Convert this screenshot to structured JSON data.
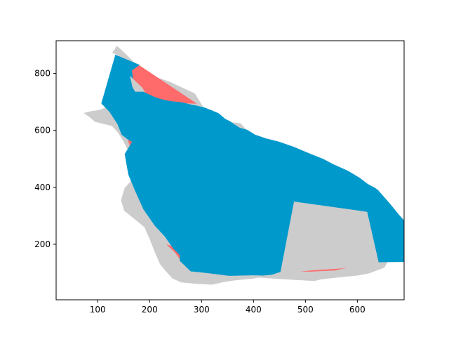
{
  "chart_data": {
    "type": "area",
    "title": "",
    "xlabel": "",
    "ylabel": "",
    "xlim": [
      20,
      690
    ],
    "ylim": [
      5,
      915
    ],
    "x_ticks": [
      100,
      200,
      300,
      400,
      500,
      600
    ],
    "y_ticks": [
      200,
      400,
      600,
      800
    ],
    "x_tick_labels": [
      "100",
      "200",
      "300",
      "400",
      "500",
      "600"
    ],
    "y_tick_labels": [
      "200",
      "400",
      "600",
      "800"
    ],
    "grid": false,
    "colors": {
      "land": "#cccccc",
      "difference": "#ff6b6b",
      "hull": "#0099cc"
    },
    "series": [
      {
        "color": "#cccccc",
        "polygon": [
          [
            137,
            897
          ],
          [
            152,
            872
          ],
          [
            172,
            836
          ],
          [
            193,
            807
          ],
          [
            216,
            785
          ],
          [
            240,
            770
          ],
          [
            263,
            750
          ],
          [
            287,
            730
          ],
          [
            303,
            683
          ],
          [
            318,
            671
          ],
          [
            335,
            650
          ],
          [
            348,
            630
          ],
          [
            362,
            628
          ],
          [
            375,
            625
          ],
          [
            395,
            585
          ],
          [
            417,
            568
          ],
          [
            438,
            560
          ],
          [
            452,
            542
          ],
          [
            460,
            525
          ],
          [
            463,
            510
          ],
          [
            474,
            450
          ],
          [
            483,
            430
          ],
          [
            502,
            404
          ],
          [
            534,
            384
          ],
          [
            558,
            363
          ],
          [
            602,
            330
          ],
          [
            640,
            304
          ],
          [
            660,
            279
          ],
          [
            676,
            236
          ],
          [
            680,
            188
          ],
          [
            665,
            160
          ],
          [
            652,
            118
          ],
          [
            621,
            97
          ],
          [
            600,
            90
          ],
          [
            575,
            86
          ],
          [
            550,
            81
          ],
          [
            532,
            77
          ],
          [
            517,
            71
          ],
          [
            497,
            73
          ],
          [
            478,
            75
          ],
          [
            458,
            77
          ],
          [
            435,
            80
          ],
          [
            410,
            83
          ],
          [
            398,
            79
          ],
          [
            378,
            76
          ],
          [
            360,
            72
          ],
          [
            342,
            67
          ],
          [
            320,
            58
          ],
          [
            290,
            61
          ],
          [
            261,
            66
          ],
          [
            244,
            80
          ],
          [
            230,
            108
          ],
          [
            220,
            130
          ],
          [
            210,
            172
          ],
          [
            200,
            218
          ],
          [
            190,
            260
          ],
          [
            170,
            290
          ],
          [
            151,
            318
          ],
          [
            145,
            355
          ],
          [
            152,
            398
          ],
          [
            163,
            420
          ],
          [
            170,
            455
          ],
          [
            165,
            508
          ],
          [
            150,
            560
          ],
          [
            140,
            590
          ],
          [
            128,
            615
          ],
          [
            109,
            624
          ],
          [
            95,
            630
          ],
          [
            82,
            650
          ],
          [
            73,
            661
          ],
          [
            88,
            668
          ],
          [
            102,
            671
          ],
          [
            116,
            681
          ],
          [
            129,
            690
          ],
          [
            135,
            702
          ],
          [
            129,
            719
          ],
          [
            124,
            737
          ],
          [
            131,
            748
          ],
          [
            130,
            760
          ],
          [
            124,
            777
          ],
          [
            129,
            790
          ],
          [
            138,
            820
          ],
          [
            130,
            835
          ],
          [
            140,
            863
          ],
          [
            128,
            873
          ],
          [
            137,
            897
          ]
        ]
      },
      {
        "color": "#ff6b6b",
        "polygon": [
          [
            175,
            835
          ],
          [
            291,
            694
          ],
          [
            265,
            695
          ],
          [
            240,
            700
          ],
          [
            214,
            702
          ],
          [
            205,
            708
          ],
          [
            198,
            715
          ],
          [
            193,
            728
          ],
          [
            186,
            750
          ],
          [
            178,
            764
          ],
          [
            170,
            778
          ],
          [
            163,
            795
          ],
          [
            162,
            805
          ],
          [
            165,
            818
          ],
          [
            175,
            835
          ]
        ]
      },
      {
        "color": "#ff6b6b",
        "polygon": [
          [
            137,
            792
          ],
          [
            156,
            776
          ],
          [
            165,
            739
          ],
          [
            172,
            730
          ],
          [
            184,
            722
          ],
          [
            195,
            714
          ],
          [
            185,
            705
          ],
          [
            170,
            690
          ],
          [
            148,
            686
          ],
          [
            140,
            688
          ],
          [
            128,
            692
          ],
          [
            112,
            690
          ],
          [
            108,
            690
          ],
          [
            120,
            730
          ],
          [
            137,
            792
          ]
        ]
      },
      {
        "color": "#ff6b6b",
        "polygon": [
          [
            136,
            810
          ],
          [
            155,
            806
          ],
          [
            156,
            822
          ],
          [
            140,
            818
          ],
          [
            136,
            810
          ]
        ]
      },
      {
        "color": "#ff6b6b",
        "polygon": [
          [
            331,
            621
          ],
          [
            357,
            611
          ],
          [
            358,
            603
          ],
          [
            346,
            596
          ],
          [
            330,
            601
          ],
          [
            331,
            621
          ]
        ]
      },
      {
        "color": "#ff6b6b",
        "polygon": [
          [
            158,
            565
          ],
          [
            172,
            571
          ],
          [
            176,
            548
          ],
          [
            162,
            545
          ],
          [
            158,
            565
          ]
        ]
      },
      {
        "color": "#ff6b6b",
        "polygon": [
          [
            232,
            200
          ],
          [
            266,
            178
          ],
          [
            279,
            142
          ],
          [
            270,
            135
          ],
          [
            257,
            150
          ],
          [
            249,
            171
          ],
          [
            232,
            200
          ]
        ]
      },
      {
        "color": "#ff6b6b",
        "polygon": [
          [
            490,
            104
          ],
          [
            510,
            108
          ],
          [
            562,
            114
          ],
          [
            580,
            118
          ],
          [
            557,
            108
          ],
          [
            510,
            104
          ],
          [
            490,
            104
          ]
        ]
      },
      {
        "color": "#0099cc",
        "polygon": [
          [
            107,
            695
          ],
          [
            134,
            866
          ],
          [
            181,
            830
          ],
          [
            166,
            811
          ],
          [
            168,
            781
          ],
          [
            162,
            792
          ],
          [
            167,
            752
          ],
          [
            172,
            736
          ],
          [
            188,
            736
          ],
          [
            197,
            728
          ],
          [
            210,
            717
          ],
          [
            222,
            710
          ],
          [
            240,
            703
          ],
          [
            262,
            699
          ],
          [
            279,
            691
          ],
          [
            291,
            687
          ],
          [
            306,
            680
          ],
          [
            320,
            670
          ],
          [
            333,
            660
          ],
          [
            346,
            640
          ],
          [
            355,
            632
          ],
          [
            361,
            624
          ],
          [
            374,
            609
          ],
          [
            388,
            602
          ],
          [
            403,
            585
          ],
          [
            424,
            572
          ],
          [
            448,
            561
          ],
          [
            478,
            542
          ],
          [
            508,
            519
          ],
          [
            534,
            500
          ],
          [
            554,
            481
          ],
          [
            582,
            458
          ],
          [
            604,
            434
          ],
          [
            620,
            412
          ],
          [
            635,
            397
          ],
          [
            640,
            390
          ],
          [
            663,
            342
          ],
          [
            680,
            304
          ],
          [
            692,
            280
          ],
          [
            711,
            260
          ],
          [
            728,
            245
          ],
          [
            738,
            228
          ],
          [
            747,
            211
          ],
          [
            760,
            196
          ],
          [
            780,
            178
          ],
          [
            803,
            162
          ],
          [
            825,
            140
          ],
          [
            641,
            137
          ],
          [
            619,
            314
          ],
          [
            478,
            350
          ],
          [
            452,
            103
          ],
          [
            436,
            93
          ],
          [
            419,
            90
          ],
          [
            399,
            91
          ],
          [
            353,
            89
          ],
          [
            314,
            98
          ],
          [
            296,
            102
          ],
          [
            279,
            105
          ],
          [
            258,
            142
          ],
          [
            258,
            162
          ],
          [
            245,
            186
          ],
          [
            229,
            228
          ],
          [
            210,
            265
          ],
          [
            188,
            323
          ],
          [
            172,
            388
          ],
          [
            159,
            445
          ],
          [
            152,
            517
          ],
          [
            162,
            547
          ],
          [
            166,
            560
          ],
          [
            158,
            568
          ],
          [
            146,
            585
          ],
          [
            138,
            622
          ],
          [
            123,
            664
          ],
          [
            107,
            695
          ]
        ]
      }
    ]
  }
}
